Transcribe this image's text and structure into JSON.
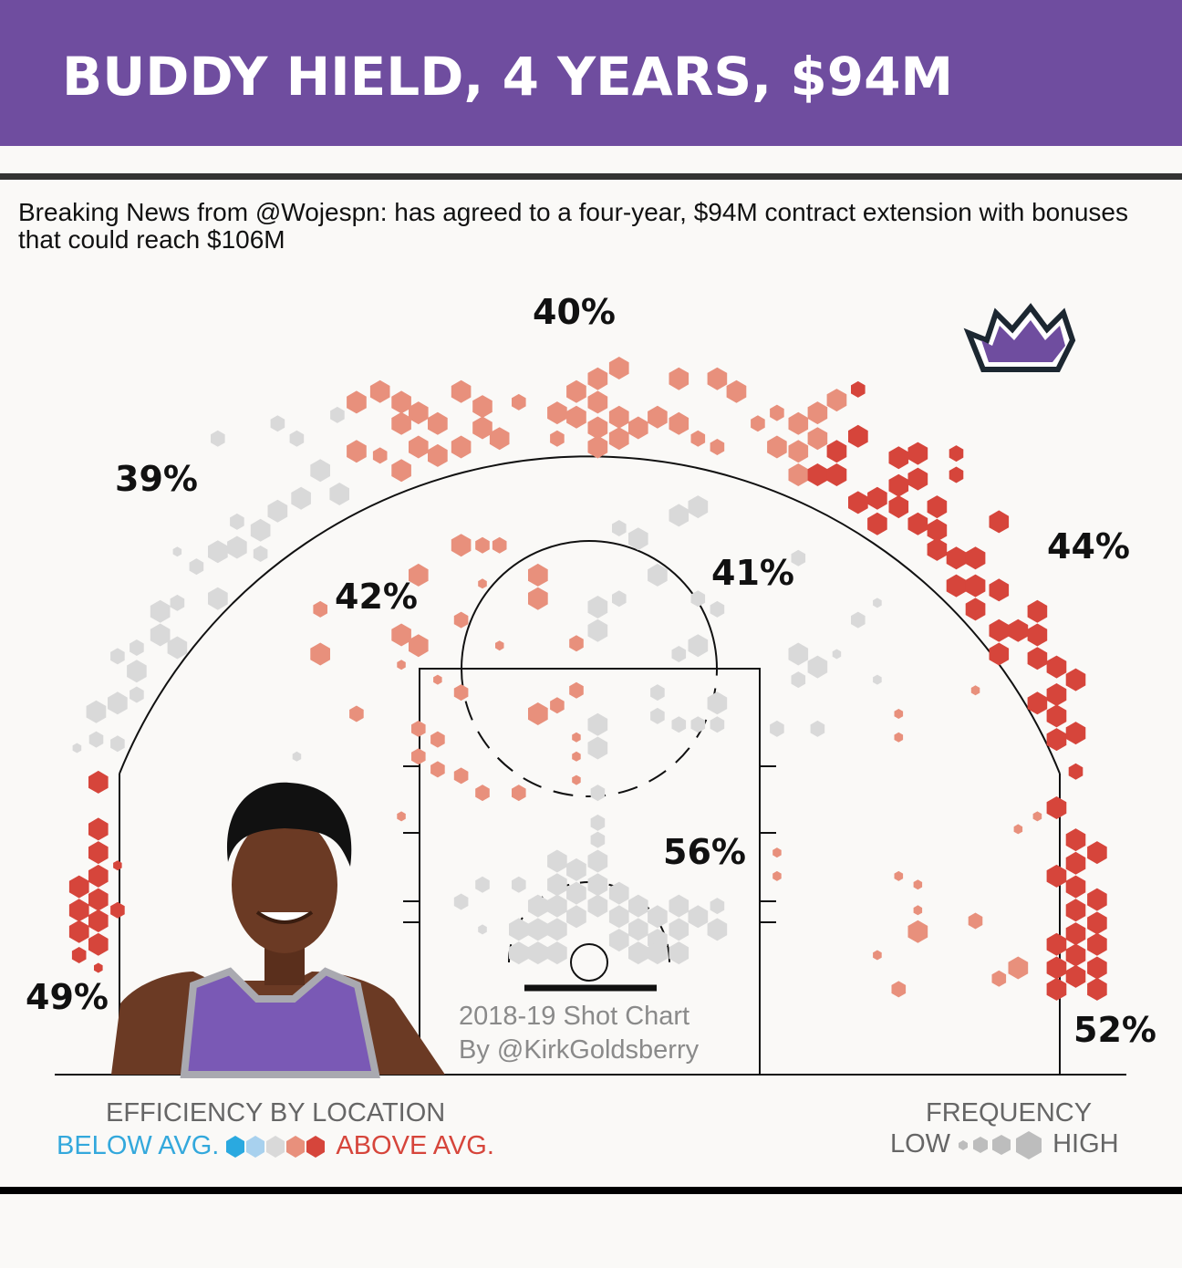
{
  "header": {
    "title": "BUDDY HIELD, 4 YEARS, $94M"
  },
  "subtitle": "Breaking News from @Wojespn: has agreed to a four-year, $94M contract extension with bonuses that could reach $106M",
  "credit": {
    "line1": "2018-19 Shot Chart",
    "line2": "By @KirkGoldsberry"
  },
  "legend": {
    "efficiency_title": "EFFICIENCY BY LOCATION",
    "below": "BELOW AVG.",
    "above": "ABOVE AVG.",
    "frequency_title": "FREQUENCY",
    "low": "LOW",
    "high": "HIGH"
  },
  "colors": {
    "brand": "#6f4d9f",
    "below2": "#2aa9e0",
    "below1": "#a8d1ee",
    "avg": "#d9d9d9",
    "above1": "#e8907c",
    "above2": "#d6453b",
    "freq": "#bdbdbd"
  },
  "chart_data": {
    "type": "hexbin-shot-chart",
    "title": "2018-19 Shot Chart",
    "units": "feet (x from basket, y from baseline)",
    "zones": [
      {
        "zone": "left-corner-three",
        "fg_pct": "49%"
      },
      {
        "zone": "left-wing-three",
        "fg_pct": "39%"
      },
      {
        "zone": "top-three",
        "fg_pct": "40%"
      },
      {
        "zone": "right-wing-three",
        "fg_pct": "44%"
      },
      {
        "zone": "right-corner-three",
        "fg_pct": "52%"
      },
      {
        "zone": "left-midrange",
        "fg_pct": "42%"
      },
      {
        "zone": "right-midrange",
        "fg_pct": "41%"
      },
      {
        "zone": "paint",
        "fg_pct": "56%"
      }
    ],
    "hex_fields": [
      "x_ft",
      "y_ft",
      "frequency_1to3",
      "efficiency_level_-2to2"
    ],
    "hexes": [
      [
        -23,
        13.7,
        3,
        2
      ],
      [
        -23,
        11.5,
        3,
        2
      ],
      [
        -23,
        10.4,
        3,
        2
      ],
      [
        -23,
        9.3,
        3,
        2
      ],
      [
        -23,
        8.2,
        3,
        2
      ],
      [
        -23,
        7.2,
        3,
        2
      ],
      [
        -23,
        6.1,
        3,
        2
      ],
      [
        -23.9,
        8.8,
        3,
        2
      ],
      [
        -23.9,
        7.7,
        3,
        2
      ],
      [
        -23.9,
        6.7,
        3,
        2
      ],
      [
        -23.9,
        5.6,
        2,
        2
      ],
      [
        -22.1,
        7.7,
        2,
        2
      ],
      [
        -22.1,
        9.8,
        1,
        2
      ],
      [
        -23,
        5,
        1,
        2
      ],
      [
        -17.4,
        29.8,
        2,
        0
      ],
      [
        -14.6,
        30.5,
        2,
        0
      ],
      [
        -13.7,
        29.8,
        2,
        0
      ],
      [
        -11.8,
        30.9,
        2,
        0
      ],
      [
        -12.6,
        28.3,
        3,
        0
      ],
      [
        -11.7,
        27.2,
        3,
        0
      ],
      [
        -13.5,
        27,
        3,
        0
      ],
      [
        -14.6,
        26.4,
        3,
        0
      ],
      [
        -15.4,
        25.5,
        3,
        0
      ],
      [
        -16.5,
        24.7,
        3,
        0
      ],
      [
        -17.4,
        24.5,
        3,
        0
      ],
      [
        -18.4,
        23.8,
        2,
        0
      ],
      [
        -19.3,
        24.5,
        1,
        0
      ],
      [
        -17.4,
        22.3,
        3,
        0
      ],
      [
        -19.3,
        22.1,
        2,
        0
      ],
      [
        -20.1,
        21.7,
        3,
        0
      ],
      [
        -20.1,
        20.6,
        3,
        0
      ],
      [
        -19.3,
        20,
        3,
        0
      ],
      [
        -21.2,
        20,
        2,
        0
      ],
      [
        -22.1,
        19.6,
        2,
        0
      ],
      [
        -21.2,
        18.9,
        3,
        0
      ],
      [
        -22.1,
        17.4,
        3,
        0
      ],
      [
        -23.1,
        17,
        3,
        0
      ],
      [
        -23.1,
        15.7,
        2,
        0
      ],
      [
        -22.1,
        15.5,
        2,
        0
      ],
      [
        -24,
        15.3,
        1,
        0
      ],
      [
        -21.2,
        17.8,
        2,
        0
      ],
      [
        -13.7,
        14.9,
        1,
        0
      ],
      [
        -15.4,
        24.4,
        2,
        0
      ],
      [
        -16.5,
        25.9,
        2,
        0
      ],
      [
        -10.9,
        31.5,
        3,
        1
      ],
      [
        -9.8,
        32,
        3,
        1
      ],
      [
        -8.8,
        31.5,
        3,
        1
      ],
      [
        -8.8,
        30.5,
        3,
        1
      ],
      [
        -8,
        31,
        3,
        1
      ],
      [
        -7.1,
        30.5,
        3,
        1
      ],
      [
        -8,
        29.4,
        3,
        1
      ],
      [
        -7.1,
        29,
        3,
        1
      ],
      [
        -8.8,
        28.3,
        3,
        1
      ],
      [
        -9.8,
        29,
        2,
        1
      ],
      [
        -10.9,
        29.2,
        3,
        1
      ],
      [
        -6,
        32,
        3,
        1
      ],
      [
        -5,
        31.3,
        3,
        1
      ],
      [
        -5,
        30.3,
        3,
        1
      ],
      [
        -6,
        29.4,
        3,
        1
      ],
      [
        -4.2,
        29.8,
        3,
        1
      ],
      [
        -3.3,
        31.5,
        2,
        1
      ],
      [
        1.4,
        33.1,
        3,
        1
      ],
      [
        0.4,
        32.6,
        3,
        1
      ],
      [
        -0.6,
        32,
        3,
        1
      ],
      [
        0.4,
        31.5,
        3,
        1
      ],
      [
        -1.5,
        31,
        3,
        1
      ],
      [
        -0.6,
        30.8,
        3,
        1
      ],
      [
        0.4,
        30.3,
        3,
        1
      ],
      [
        1.4,
        30.8,
        3,
        1
      ],
      [
        2.3,
        30.3,
        3,
        1
      ],
      [
        3.2,
        30.8,
        3,
        1
      ],
      [
        4.2,
        32.6,
        3,
        1
      ],
      [
        4.2,
        30.5,
        3,
        1
      ],
      [
        0.4,
        29.4,
        3,
        1
      ],
      [
        1.4,
        29.8,
        3,
        1
      ],
      [
        6,
        32.6,
        3,
        1
      ],
      [
        6.9,
        32,
        3,
        1
      ],
      [
        7.9,
        30.5,
        2,
        1
      ],
      [
        -1.5,
        29.8,
        2,
        1
      ],
      [
        5.1,
        29.8,
        2,
        1
      ],
      [
        6,
        29.4,
        2,
        1
      ],
      [
        8.8,
        31,
        2,
        1
      ],
      [
        9.8,
        30.5,
        3,
        1
      ],
      [
        10.7,
        31,
        3,
        1
      ],
      [
        11.6,
        31.6,
        3,
        1
      ],
      [
        8.8,
        29.4,
        3,
        1
      ],
      [
        9.8,
        29.2,
        3,
        1
      ],
      [
        9.8,
        28.1,
        3,
        1
      ],
      [
        10.7,
        29.8,
        3,
        1
      ],
      [
        12.6,
        32.1,
        2,
        2
      ],
      [
        12.6,
        29.9,
        3,
        2
      ],
      [
        11.6,
        29.2,
        3,
        2
      ],
      [
        10.7,
        28.1,
        3,
        2
      ],
      [
        11.6,
        28.1,
        3,
        2
      ],
      [
        12.6,
        26.8,
        3,
        2
      ],
      [
        13.5,
        27,
        3,
        2
      ],
      [
        13.5,
        25.8,
        3,
        2
      ],
      [
        14.5,
        28.9,
        3,
        2
      ],
      [
        14.5,
        27.6,
        3,
        2
      ],
      [
        14.5,
        26.6,
        3,
        2
      ],
      [
        15.4,
        29.1,
        3,
        2
      ],
      [
        15.4,
        27.9,
        3,
        2
      ],
      [
        15.4,
        25.8,
        3,
        2
      ],
      [
        16.3,
        26.6,
        3,
        2
      ],
      [
        16.3,
        25.5,
        3,
        2
      ],
      [
        17.2,
        29.1,
        2,
        2
      ],
      [
        17.2,
        28.1,
        2,
        2
      ],
      [
        16.3,
        24.6,
        3,
        2
      ],
      [
        17.2,
        24.2,
        3,
        2
      ],
      [
        17.2,
        22.9,
        3,
        2
      ],
      [
        18.1,
        24.2,
        3,
        2
      ],
      [
        18.1,
        22.9,
        3,
        2
      ],
      [
        18.1,
        21.8,
        3,
        2
      ],
      [
        19.2,
        25.9,
        3,
        2
      ],
      [
        19.2,
        22.7,
        3,
        2
      ],
      [
        19.2,
        20.8,
        3,
        2
      ],
      [
        19.2,
        19.7,
        3,
        2
      ],
      [
        20.1,
        20.8,
        3,
        2
      ],
      [
        21,
        21.7,
        3,
        2
      ],
      [
        21,
        20.6,
        3,
        2
      ],
      [
        21,
        19.5,
        3,
        2
      ],
      [
        21,
        17.4,
        3,
        2
      ],
      [
        21.9,
        19.1,
        3,
        2
      ],
      [
        21.9,
        17.8,
        3,
        2
      ],
      [
        22.8,
        18.5,
        3,
        2
      ],
      [
        21.9,
        16.8,
        3,
        2
      ],
      [
        21.9,
        15.7,
        3,
        2
      ],
      [
        22.8,
        16,
        3,
        2
      ],
      [
        22.8,
        14.2,
        2,
        2
      ],
      [
        21.9,
        12.5,
        3,
        2
      ],
      [
        22.8,
        11,
        3,
        2
      ],
      [
        23.8,
        10.4,
        3,
        2
      ],
      [
        22.8,
        9.9,
        3,
        2
      ],
      [
        21.9,
        9.3,
        3,
        2
      ],
      [
        22.8,
        8.8,
        3,
        2
      ],
      [
        23.8,
        8.2,
        3,
        2
      ],
      [
        22.8,
        7.7,
        3,
        2
      ],
      [
        23.8,
        7.1,
        3,
        2
      ],
      [
        21.9,
        6.1,
        3,
        2
      ],
      [
        22.8,
        6.6,
        3,
        2
      ],
      [
        22.8,
        5.6,
        3,
        2
      ],
      [
        23.8,
        6.1,
        3,
        2
      ],
      [
        21.9,
        5,
        3,
        2
      ],
      [
        22.8,
        4.6,
        3,
        2
      ],
      [
        21.9,
        4,
        3,
        2
      ],
      [
        23.8,
        4,
        3,
        2
      ],
      [
        23.8,
        5,
        3,
        2
      ],
      [
        -8,
        23.4,
        3,
        1
      ],
      [
        -8.8,
        20.6,
        3,
        1
      ],
      [
        -8,
        20.1,
        3,
        1
      ],
      [
        -12.6,
        19.7,
        3,
        1
      ],
      [
        -12.6,
        21.8,
        2,
        1
      ],
      [
        -6,
        24.8,
        3,
        1
      ],
      [
        -5,
        24.8,
        2,
        1
      ],
      [
        -4.2,
        24.8,
        2,
        1
      ],
      [
        -6,
        21.3,
        2,
        1
      ],
      [
        -2.4,
        23.4,
        3,
        1
      ],
      [
        -2.4,
        22.3,
        3,
        1
      ],
      [
        -8.8,
        19.2,
        1,
        1
      ],
      [
        -7.1,
        18.5,
        1,
        1
      ],
      [
        -6,
        17.9,
        2,
        1
      ],
      [
        -10.9,
        16.9,
        2,
        1
      ],
      [
        -8,
        16.2,
        2,
        1
      ],
      [
        -7.1,
        15.7,
        2,
        1
      ],
      [
        -8,
        14.9,
        2,
        1
      ],
      [
        -7.1,
        14.3,
        2,
        1
      ],
      [
        -6,
        14,
        2,
        1
      ],
      [
        -5,
        13.2,
        2,
        1
      ],
      [
        -3.3,
        13.2,
        2,
        1
      ],
      [
        -2.4,
        16.9,
        3,
        1
      ],
      [
        -1.5,
        17.3,
        2,
        1
      ],
      [
        -0.6,
        18,
        2,
        1
      ],
      [
        -0.6,
        20.2,
        2,
        1
      ],
      [
        -0.6,
        15.8,
        1,
        1
      ],
      [
        -0.6,
        14.9,
        1,
        1
      ],
      [
        -0.6,
        13.8,
        1,
        1
      ],
      [
        -8.8,
        12.1,
        1,
        1
      ],
      [
        -4.2,
        20.1,
        1,
        1
      ],
      [
        -5,
        23,
        1,
        1
      ],
      [
        14.5,
        16.9,
        1,
        1
      ],
      [
        14.5,
        15.8,
        1,
        1
      ],
      [
        15.4,
        6.7,
        3,
        1
      ],
      [
        18.1,
        7.2,
        2,
        1
      ],
      [
        20.1,
        5,
        3,
        1
      ],
      [
        19.2,
        4.5,
        2,
        1
      ],
      [
        14.5,
        4,
        2,
        1
      ],
      [
        15.4,
        8.9,
        1,
        1
      ],
      [
        15.4,
        7.7,
        1,
        1
      ],
      [
        14.5,
        9.3,
        1,
        1
      ],
      [
        8.8,
        10.4,
        1,
        1
      ],
      [
        8.8,
        9.3,
        1,
        1
      ],
      [
        20.1,
        11.5,
        1,
        1
      ],
      [
        21,
        12.1,
        1,
        1
      ],
      [
        18.1,
        18,
        1,
        1
      ],
      [
        13.5,
        5.6,
        1,
        1
      ],
      [
        0.4,
        21.9,
        3,
        0
      ],
      [
        0.4,
        20.8,
        3,
        0
      ],
      [
        1.4,
        22.3,
        2,
        0
      ],
      [
        3.2,
        23.4,
        3,
        0
      ],
      [
        2.3,
        25.1,
        3,
        0
      ],
      [
        1.4,
        25.6,
        2,
        0
      ],
      [
        4.2,
        26.2,
        3,
        0
      ],
      [
        5.1,
        26.6,
        3,
        0
      ],
      [
        5.1,
        22.3,
        2,
        0
      ],
      [
        6,
        21.8,
        2,
        0
      ],
      [
        5.1,
        20.1,
        3,
        0
      ],
      [
        4.2,
        19.7,
        2,
        0
      ],
      [
        3.2,
        17.9,
        2,
        0
      ],
      [
        3.2,
        16.8,
        2,
        0
      ],
      [
        4.2,
        16.4,
        2,
        0
      ],
      [
        5.1,
        16.4,
        2,
        0
      ],
      [
        6,
        17.4,
        3,
        0
      ],
      [
        6,
        16.4,
        2,
        0
      ],
      [
        0.4,
        16.4,
        3,
        0
      ],
      [
        0.4,
        15.3,
        3,
        0
      ],
      [
        9.8,
        19.7,
        3,
        0
      ],
      [
        10.7,
        19.1,
        3,
        0
      ],
      [
        9.8,
        18.5,
        2,
        0
      ],
      [
        9.8,
        24.2,
        2,
        0
      ],
      [
        8.8,
        16.2,
        2,
        0
      ],
      [
        10.7,
        16.2,
        2,
        0
      ],
      [
        12.6,
        21.3,
        2,
        0
      ],
      [
        13.5,
        22.1,
        1,
        0
      ],
      [
        11.6,
        19.7,
        1,
        0
      ],
      [
        13.5,
        18.5,
        1,
        0
      ],
      [
        0.4,
        13.2,
        2,
        0
      ],
      [
        0.4,
        11.8,
        2,
        0
      ],
      [
        0.4,
        11,
        2,
        0
      ],
      [
        -1.5,
        10,
        3,
        0
      ],
      [
        -0.6,
        9.6,
        3,
        0
      ],
      [
        0.4,
        10,
        3,
        0
      ],
      [
        -1.5,
        8.9,
        3,
        0
      ],
      [
        -0.6,
        8.5,
        3,
        0
      ],
      [
        0.4,
        8.9,
        3,
        0
      ],
      [
        1.4,
        8.5,
        3,
        0
      ],
      [
        -2.4,
        7.9,
        3,
        0
      ],
      [
        -1.5,
        7.9,
        3,
        0
      ],
      [
        -0.6,
        7.4,
        3,
        0
      ],
      [
        0.4,
        7.9,
        3,
        0
      ],
      [
        1.4,
        7.4,
        3,
        0
      ],
      [
        2.3,
        7.9,
        3,
        0
      ],
      [
        3.2,
        7.4,
        3,
        0
      ],
      [
        -3.3,
        6.8,
        3,
        0
      ],
      [
        -2.4,
        6.8,
        3,
        0
      ],
      [
        -1.5,
        6.8,
        3,
        0
      ],
      [
        1.4,
        6.3,
        3,
        0
      ],
      [
        2.3,
        6.8,
        3,
        0
      ],
      [
        3.2,
        6.3,
        3,
        0
      ],
      [
        4.2,
        6.8,
        3,
        0
      ],
      [
        5.1,
        7.4,
        3,
        0
      ],
      [
        6,
        6.8,
        3,
        0
      ],
      [
        -3.3,
        5.7,
        3,
        0
      ],
      [
        -2.4,
        5.7,
        3,
        0
      ],
      [
        -1.5,
        5.7,
        3,
        0
      ],
      [
        2.3,
        5.7,
        3,
        0
      ],
      [
        3.2,
        5.7,
        3,
        0
      ],
      [
        4.2,
        5.7,
        3,
        0
      ],
      [
        4.2,
        7.9,
        3,
        0
      ],
      [
        -5,
        8.9,
        2,
        0
      ],
      [
        -6,
        8.1,
        2,
        0
      ],
      [
        -5,
        6.8,
        1,
        0
      ],
      [
        -3.3,
        8.9,
        2,
        0
      ],
      [
        6,
        7.9,
        2,
        0
      ]
    ]
  }
}
